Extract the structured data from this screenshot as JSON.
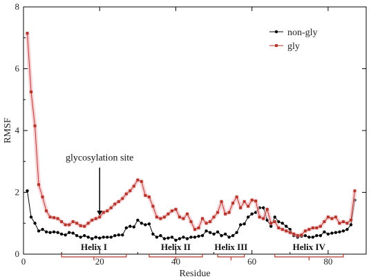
{
  "chart_data": {
    "type": "line",
    "xlabel": "Residue",
    "ylabel": "RMSF",
    "xlim": [
      0,
      90
    ],
    "ylim": [
      0,
      8
    ],
    "xticks": [
      0,
      20,
      40,
      60,
      80
    ],
    "yticks": [
      0,
      2,
      4,
      6,
      8
    ],
    "grid": false,
    "legend_position": "top-right",
    "x": [
      1,
      2,
      3,
      4,
      5,
      6,
      7,
      8,
      9,
      10,
      11,
      12,
      13,
      14,
      15,
      16,
      17,
      18,
      19,
      20,
      21,
      22,
      23,
      24,
      25,
      26,
      27,
      28,
      29,
      30,
      31,
      32,
      33,
      34,
      35,
      36,
      37,
      38,
      39,
      40,
      41,
      42,
      43,
      44,
      45,
      46,
      47,
      48,
      49,
      50,
      51,
      52,
      53,
      54,
      55,
      56,
      57,
      58,
      59,
      60,
      61,
      62,
      63,
      64,
      65,
      66,
      67,
      68,
      69,
      70,
      71,
      72,
      73,
      74,
      75,
      76,
      77,
      78,
      79,
      80,
      81,
      82,
      83,
      84,
      85,
      86,
      87
    ],
    "series": [
      {
        "name": "non-gly",
        "color": "#000000",
        "values": [
          2.05,
          1.2,
          1.0,
          0.75,
          0.8,
          0.72,
          0.7,
          0.72,
          0.7,
          0.65,
          0.62,
          0.7,
          0.68,
          0.6,
          0.55,
          0.6,
          0.55,
          0.5,
          0.55,
          0.52,
          0.55,
          0.55,
          0.55,
          0.6,
          0.62,
          0.62,
          0.85,
          0.9,
          0.88,
          1.1,
          1.0,
          0.95,
          0.98,
          0.65,
          0.55,
          0.6,
          0.5,
          0.52,
          0.55,
          0.45,
          0.5,
          0.55,
          0.5,
          0.55,
          0.55,
          0.58,
          0.6,
          0.75,
          0.7,
          0.65,
          0.72,
          0.6,
          0.65,
          0.55,
          0.6,
          0.7,
          0.95,
          0.98,
          1.2,
          1.3,
          1.35,
          1.5,
          1.5,
          1.1,
          0.9,
          1.2,
          1.05,
          1.0,
          0.9,
          0.8,
          0.6,
          0.55,
          0.58,
          0.6,
          0.55,
          0.55,
          0.6,
          0.6,
          0.72,
          0.65,
          0.68,
          0.7,
          0.72,
          0.75,
          0.8,
          0.95,
          1.75
        ]
      },
      {
        "name": "gly",
        "color": "#b5352a",
        "values": [
          7.15,
          5.25,
          4.15,
          2.25,
          1.85,
          1.4,
          1.2,
          1.18,
          1.15,
          1.05,
          0.95,
          0.95,
          1.05,
          1.0,
          0.92,
          0.9,
          1.0,
          1.1,
          1.15,
          1.2,
          1.35,
          1.4,
          1.5,
          1.62,
          1.7,
          1.8,
          1.95,
          2.05,
          2.2,
          2.4,
          2.35,
          1.9,
          1.85,
          1.55,
          1.2,
          1.15,
          1.2,
          1.3,
          1.4,
          1.45,
          1.2,
          1.15,
          1.3,
          1.05,
          0.8,
          0.85,
          1.15,
          1.0,
          1.05,
          1.2,
          1.35,
          1.7,
          1.3,
          1.35,
          1.65,
          1.85,
          1.5,
          1.7,
          1.55,
          1.75,
          1.72,
          1.2,
          1.15,
          1.45,
          1.0,
          1.05,
          0.85,
          0.8,
          0.75,
          0.7,
          0.65,
          0.6,
          0.62,
          0.75,
          0.8,
          0.85,
          0.85,
          0.9,
          1.05,
          1.2,
          1.15,
          1.2,
          1.0,
          1.05,
          1.0,
          1.1,
          2.05
        ]
      }
    ],
    "annotations": [
      {
        "text": "glycosylation site",
        "arrow_x": 20,
        "arrow_y_from": 2.8,
        "arrow_y_to": 1.25
      }
    ],
    "helices": [
      {
        "label": "Helix I",
        "start": 10,
        "end": 27
      },
      {
        "label": "Helix II",
        "start": 33,
        "end": 47
      },
      {
        "label": "Helix III",
        "start": 51,
        "end": 58
      },
      {
        "label": "Helix IV",
        "start": 66,
        "end": 84
      }
    ]
  }
}
